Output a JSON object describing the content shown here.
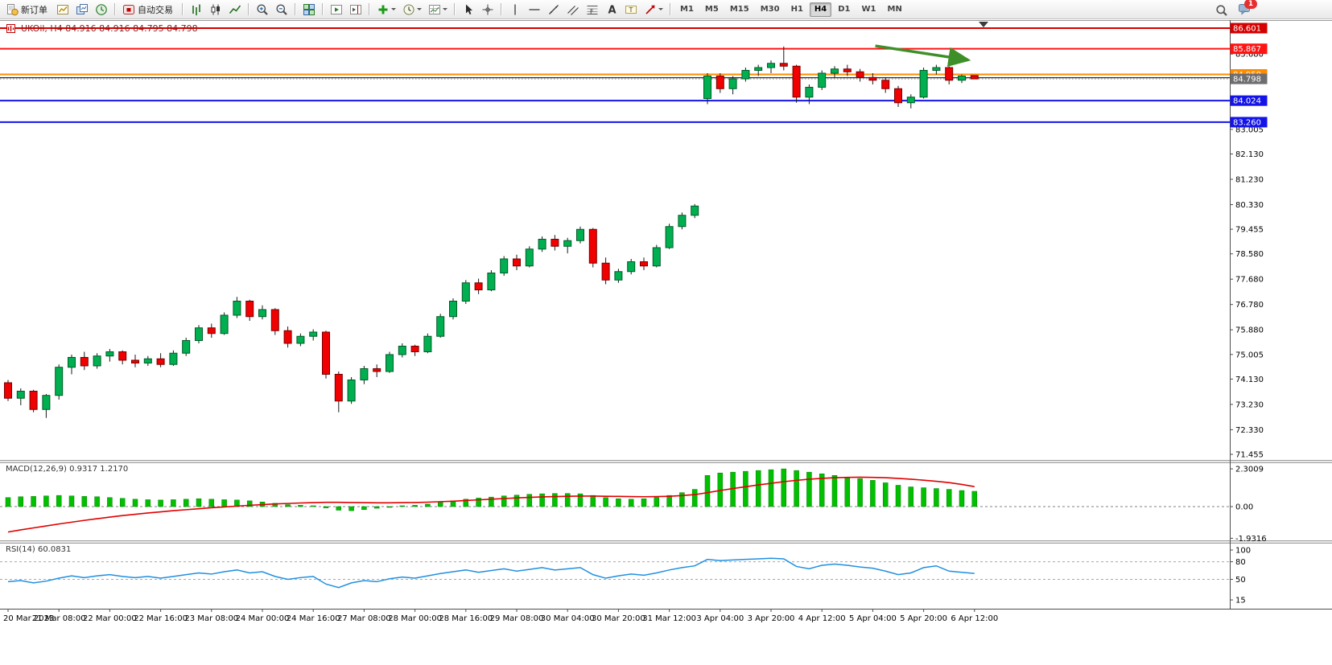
{
  "window": {
    "title": "UKOil, H4 84.916 84.916 84.795 84.798",
    "symbol": "UKOil",
    "period": "H4",
    "ohlc_line": {
      "open": 84.916,
      "high": 84.916,
      "low": 84.795,
      "close": 84.798
    }
  },
  "toolbar": {
    "chat_badge_count": "1",
    "active_timeframe": "H4",
    "timeframes": [
      "M1",
      "M5",
      "M15",
      "M30",
      "H1",
      "H4",
      "D1",
      "W1",
      "MN"
    ],
    "items": [
      {
        "name": "new-order-button",
        "icon": "new-order-icon",
        "label": "新订单"
      },
      {
        "name": "new-chart-button",
        "icon": "new-chart-icon"
      },
      {
        "name": "profiles-button",
        "icon": "profiles-icon"
      },
      {
        "name": "market-watch-button",
        "icon": "market-watch-icon"
      },
      {
        "sep": true
      },
      {
        "name": "autotrading-button",
        "icon": "autotrading-icon",
        "label": "自动交易"
      },
      {
        "sep": true
      },
      {
        "name": "bar-chart-button",
        "icon": "bar-chart-icon"
      },
      {
        "name": "candlestick-chart-button",
        "icon": "candlestick-chart-icon"
      },
      {
        "name": "line-chart-button",
        "icon": "line-chart-icon"
      },
      {
        "sep": true
      },
      {
        "name": "zoom-in-button",
        "icon": "zoom-in-icon"
      },
      {
        "name": "zoom-out-button",
        "icon": "zoom-out-icon"
      },
      {
        "sep": true
      },
      {
        "name": "tile-windows-button",
        "icon": "tile-windows-icon"
      },
      {
        "sep": true
      },
      {
        "name": "auto-scroll-button",
        "icon": "auto-scroll-icon"
      },
      {
        "name": "chart-shift-button",
        "icon": "chart-shift-icon"
      },
      {
        "sep": true
      },
      {
        "name": "indicators-button",
        "icon": "add-indicator-icon",
        "caret": true
      },
      {
        "name": "periods-button",
        "icon": "period-icon",
        "caret": true
      },
      {
        "name": "templates-button",
        "icon": "template-icon",
        "caret": true
      },
      {
        "sep": true
      },
      {
        "name": "cursor-button",
        "icon": "cursor-icon"
      },
      {
        "name": "crosshair-button",
        "icon": "crosshair-icon"
      },
      {
        "sep": true
      },
      {
        "name": "vertical-line-button",
        "icon": "vertical-line-icon"
      },
      {
        "name": "horizontal-line-button",
        "icon": "horizontal-line-icon"
      },
      {
        "name": "trendline-button",
        "icon": "trendline-icon"
      },
      {
        "name": "channel-button",
        "icon": "channel-icon"
      },
      {
        "name": "fibonacci-button",
        "icon": "fibonacci-icon"
      },
      {
        "name": "text-button",
        "icon": "text-icon"
      },
      {
        "name": "text-label-button",
        "icon": "text-label-icon"
      },
      {
        "name": "arrow-tools-button",
        "icon": "arrow-tools-icon",
        "caret": true
      },
      {
        "sep": true
      }
    ]
  },
  "chart_data": {
    "symbol": "UKOil",
    "period": "H4",
    "price": {
      "type": "candlestick",
      "up_color": "#00b050",
      "down_color": "#f00000",
      "ylim": [
        71.455,
        86.601
      ],
      "time_labels": [
        "20 Mar 2023",
        "21 Mar 08:00",
        "22 Mar 00:00",
        "22 Mar 16:00",
        "23 Mar 08:00",
        "24 Mar 00:00",
        "24 Mar 16:00",
        "27 Mar 08:00",
        "28 Mar 00:00",
        "28 Mar 16:00",
        "29 Mar 08:00",
        "30 Mar 04:00",
        "30 Mar 20:00",
        "31 Mar 12:00",
        "3 Apr 04:00",
        "3 Apr 20:00",
        "4 Apr 12:00",
        "5 Apr 04:00",
        "5 Apr 20:00",
        "6 Apr 12:00"
      ],
      "label_every_n_bars": 4,
      "y_ticks": [
        85.68,
        83.005,
        82.13,
        81.23,
        80.33,
        79.455,
        78.58,
        77.68,
        76.78,
        75.88,
        75.005,
        74.13,
        73.23,
        72.33,
        71.455
      ],
      "hlines": [
        {
          "price": 86.601,
          "color": "#d40000",
          "width": 2,
          "badge": true
        },
        {
          "price": 85.867,
          "color": "#ff1414",
          "width": 2,
          "badge": true
        },
        {
          "price": 84.958,
          "color": "#ff8c00",
          "width": 2,
          "badge": true
        },
        {
          "price": 84.84,
          "color": "#2b2b2b",
          "width": 1.2,
          "badge": false
        },
        {
          "price": 84.024,
          "color": "#1414e8",
          "width": 2,
          "badge": true
        },
        {
          "price": 83.26,
          "color": "#1414e8",
          "width": 2,
          "badge": true
        }
      ],
      "current_price": {
        "price": 84.798,
        "line_color": "#8c8c8c",
        "badge_color": "#6e6e6e"
      },
      "annotation_arrow": {
        "from_bar": 68.2,
        "from_price": 85.97,
        "to_bar": 75.5,
        "to_price": 85.47,
        "color": "#3f8f29"
      },
      "ohlc": [
        [
          74.0,
          74.1,
          73.35,
          73.45
        ],
        [
          73.45,
          73.8,
          73.2,
          73.7
        ],
        [
          73.7,
          73.75,
          72.95,
          73.05
        ],
        [
          73.05,
          73.6,
          72.75,
          73.55
        ],
        [
          73.55,
          74.65,
          73.4,
          74.55
        ],
        [
          74.55,
          75.0,
          74.3,
          74.9
        ],
        [
          74.9,
          75.1,
          74.45,
          74.6
        ],
        [
          74.6,
          75.05,
          74.5,
          74.95
        ],
        [
          74.95,
          75.2,
          74.75,
          75.1
        ],
        [
          75.1,
          75.15,
          74.65,
          74.8
        ],
        [
          74.8,
          75.0,
          74.55,
          74.7
        ],
        [
          74.7,
          74.95,
          74.6,
          74.85
        ],
        [
          74.85,
          75.05,
          74.55,
          74.65
        ],
        [
          74.65,
          75.15,
          74.6,
          75.05
        ],
        [
          75.05,
          75.6,
          74.95,
          75.5
        ],
        [
          75.5,
          76.05,
          75.4,
          75.95
        ],
        [
          75.95,
          76.1,
          75.6,
          75.75
        ],
        [
          75.75,
          76.5,
          75.7,
          76.4
        ],
        [
          76.4,
          77.05,
          76.3,
          76.9
        ],
        [
          76.9,
          76.95,
          76.2,
          76.35
        ],
        [
          76.35,
          76.75,
          76.25,
          76.6
        ],
        [
          76.6,
          76.65,
          75.7,
          75.85
        ],
        [
          75.85,
          76.0,
          75.25,
          75.4
        ],
        [
          75.4,
          75.75,
          75.3,
          75.65
        ],
        [
          75.65,
          75.9,
          75.5,
          75.8
        ],
        [
          75.8,
          75.85,
          74.15,
          74.3
        ],
        [
          74.3,
          74.4,
          72.95,
          73.35
        ],
        [
          73.35,
          74.2,
          73.25,
          74.1
        ],
        [
          74.1,
          74.6,
          73.95,
          74.5
        ],
        [
          74.5,
          74.65,
          74.2,
          74.4
        ],
        [
          74.4,
          75.1,
          74.35,
          75.0
        ],
        [
          75.0,
          75.4,
          74.9,
          75.3
        ],
        [
          75.3,
          75.35,
          74.95,
          75.1
        ],
        [
          75.1,
          75.75,
          75.05,
          75.65
        ],
        [
          75.65,
          76.45,
          75.6,
          76.35
        ],
        [
          76.35,
          77.0,
          76.25,
          76.9
        ],
        [
          76.9,
          77.65,
          76.8,
          77.55
        ],
        [
          77.55,
          77.7,
          77.15,
          77.3
        ],
        [
          77.3,
          78.0,
          77.25,
          77.9
        ],
        [
          77.9,
          78.5,
          77.8,
          78.4
        ],
        [
          78.4,
          78.55,
          78.0,
          78.15
        ],
        [
          78.15,
          78.85,
          78.1,
          78.75
        ],
        [
          78.75,
          79.2,
          78.65,
          79.1
        ],
        [
          79.1,
          79.25,
          78.7,
          78.85
        ],
        [
          78.85,
          79.15,
          78.6,
          79.05
        ],
        [
          79.05,
          79.55,
          78.95,
          79.45
        ],
        [
          79.45,
          79.5,
          78.1,
          78.25
        ],
        [
          78.25,
          78.45,
          77.5,
          77.65
        ],
        [
          77.65,
          78.05,
          77.55,
          77.95
        ],
        [
          77.95,
          78.4,
          77.85,
          78.3
        ],
        [
          78.3,
          78.45,
          78.0,
          78.15
        ],
        [
          78.15,
          78.9,
          78.1,
          78.8
        ],
        [
          78.8,
          79.65,
          78.75,
          79.55
        ],
        [
          79.55,
          80.05,
          79.45,
          79.95
        ],
        [
          79.95,
          80.35,
          79.85,
          80.28
        ],
        [
          84.1,
          85.0,
          83.9,
          84.9
        ],
        [
          84.9,
          85.0,
          84.3,
          84.45
        ],
        [
          84.45,
          84.9,
          84.25,
          84.8
        ],
        [
          84.8,
          85.2,
          84.7,
          85.1
        ],
        [
          85.1,
          85.3,
          84.9,
          85.2
        ],
        [
          85.2,
          85.45,
          85.0,
          85.35
        ],
        [
          85.35,
          85.95,
          85.1,
          85.25
        ],
        [
          85.25,
          85.3,
          83.95,
          84.15
        ],
        [
          84.15,
          84.6,
          83.9,
          84.5
        ],
        [
          84.5,
          85.1,
          84.4,
          85.0
        ],
        [
          85.0,
          85.25,
          84.85,
          85.15
        ],
        [
          85.15,
          85.3,
          84.9,
          85.05
        ],
        [
          85.05,
          85.15,
          84.7,
          84.85
        ],
        [
          84.85,
          85.0,
          84.6,
          84.75
        ],
        [
          84.75,
          84.85,
          84.3,
          84.45
        ],
        [
          84.45,
          84.55,
          83.8,
          83.95
        ],
        [
          83.95,
          84.25,
          83.75,
          84.15
        ],
        [
          84.15,
          85.2,
          84.1,
          85.1
        ],
        [
          85.1,
          85.3,
          84.95,
          85.2
        ],
        [
          85.2,
          85.25,
          84.6,
          84.75
        ],
        [
          84.75,
          84.95,
          84.65,
          84.9
        ],
        [
          84.916,
          84.916,
          84.795,
          84.798
        ]
      ]
    },
    "macd": {
      "type": "histogram+line",
      "label": "MACD(12,26,9) 0.9317 1.2170",
      "params": "12,26,9",
      "value": 0.9317,
      "signal_value": 1.217,
      "axis_labels": [
        "2.3009",
        "0.00",
        "-1.9316"
      ],
      "axis_values": [
        2.3009,
        0,
        -1.9316
      ],
      "hist_color": "#00c000",
      "signal_color": "#e00000",
      "histogram": [
        0.55,
        0.6,
        0.62,
        0.65,
        0.68,
        0.65,
        0.62,
        0.6,
        0.55,
        0.5,
        0.45,
        0.42,
        0.4,
        0.42,
        0.45,
        0.48,
        0.45,
        0.42,
        0.4,
        0.35,
        0.28,
        0.2,
        0.12,
        0.08,
        0.05,
        -0.08,
        -0.22,
        -0.25,
        -0.18,
        -0.1,
        -0.02,
        0.05,
        0.08,
        0.15,
        0.25,
        0.35,
        0.45,
        0.52,
        0.58,
        0.65,
        0.7,
        0.75,
        0.78,
        0.8,
        0.8,
        0.78,
        0.68,
        0.55,
        0.48,
        0.45,
        0.48,
        0.55,
        0.68,
        0.85,
        1.05,
        1.9,
        2.05,
        2.1,
        2.15,
        2.2,
        2.25,
        2.3,
        2.2,
        2.1,
        2.0,
        1.9,
        1.8,
        1.7,
        1.6,
        1.45,
        1.3,
        1.2,
        1.15,
        1.1,
        1.05,
        0.98,
        0.9317
      ],
      "signal": [
        -1.55,
        -1.42,
        -1.3,
        -1.18,
        -1.06,
        -0.95,
        -0.84,
        -0.74,
        -0.64,
        -0.55,
        -0.47,
        -0.39,
        -0.32,
        -0.25,
        -0.19,
        -0.13,
        -0.07,
        -0.02,
        0.03,
        0.08,
        0.12,
        0.16,
        0.19,
        0.22,
        0.24,
        0.26,
        0.26,
        0.25,
        0.24,
        0.23,
        0.23,
        0.24,
        0.25,
        0.27,
        0.3,
        0.33,
        0.37,
        0.41,
        0.45,
        0.49,
        0.53,
        0.56,
        0.59,
        0.61,
        0.63,
        0.64,
        0.64,
        0.63,
        0.62,
        0.61,
        0.6,
        0.61,
        0.63,
        0.67,
        0.73,
        0.85,
        0.98,
        1.1,
        1.21,
        1.32,
        1.42,
        1.52,
        1.6,
        1.67,
        1.72,
        1.76,
        1.78,
        1.79,
        1.78,
        1.76,
        1.72,
        1.67,
        1.61,
        1.54,
        1.46,
        1.35,
        1.217
      ]
    },
    "rsi": {
      "type": "line",
      "label": "RSI(14) 60.0831",
      "rsi_period": 14,
      "value": 60.0831,
      "axis_labels": [
        "100",
        "80",
        "50",
        "15"
      ],
      "axis_values": [
        100,
        80,
        50,
        15
      ],
      "levels": [
        80,
        50
      ],
      "line_color": "#2090e0",
      "values": [
        46,
        48,
        44,
        47,
        52,
        56,
        53,
        56,
        58,
        55,
        53,
        55,
        52,
        55,
        58,
        61,
        59,
        63,
        66,
        61,
        63,
        55,
        50,
        53,
        55,
        42,
        36,
        44,
        48,
        46,
        51,
        54,
        52,
        56,
        60,
        63,
        66,
        62,
        65,
        68,
        64,
        67,
        70,
        66,
        68,
        70,
        58,
        52,
        56,
        59,
        57,
        61,
        66,
        70,
        73,
        84,
        82,
        83,
        84,
        85,
        86,
        85,
        72,
        68,
        74,
        76,
        74,
        71,
        69,
        64,
        58,
        61,
        70,
        73,
        64,
        62,
        60.0831
      ]
    }
  }
}
